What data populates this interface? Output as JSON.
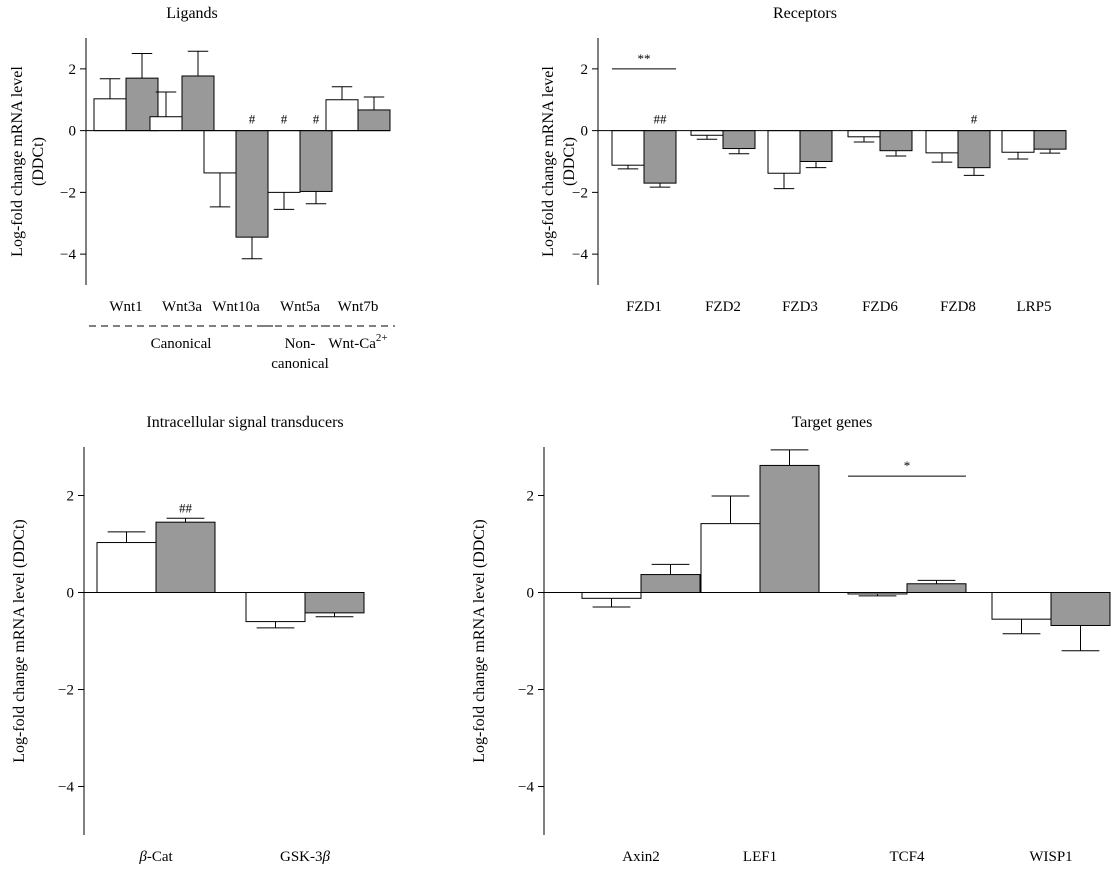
{
  "colors": {
    "control": "#ffffff",
    "treated": "#999999",
    "stroke": "#000000"
  },
  "chart_data": [
    {
      "type": "bar",
      "title": "Ligands",
      "ylabel_lines": [
        "Log-fold change mRNA level",
        "(DDCt)"
      ],
      "ylim": [
        -5,
        3
      ],
      "yticks": [
        2,
        0,
        -2,
        -4
      ],
      "ytick_labels": [
        "2",
        "0",
        "−2",
        "−4"
      ],
      "categories": [
        "Wnt1",
        "Wnt3a",
        "Wnt10a",
        "Wnt5a",
        "Wnt7b"
      ],
      "series": [
        {
          "values": [
            1.03,
            0.45,
            -1.37,
            -2.0,
            1.0
          ],
          "errors": [
            0.65,
            0.8,
            1.1,
            0.55,
            0.42
          ]
        },
        {
          "values": [
            1.7,
            1.77,
            -3.45,
            -1.97,
            0.67
          ],
          "errors": [
            0.8,
            0.8,
            0.7,
            0.4,
            0.42
          ]
        }
      ],
      "annotations": [
        {
          "category": 2,
          "series": 1,
          "text": "#"
        },
        {
          "category": 3,
          "series": 0,
          "text": "#"
        },
        {
          "category": 3,
          "series": 1,
          "text": "#"
        }
      ],
      "significance": [],
      "groups": [
        {
          "lines": [
            "Canonical"
          ],
          "from": 0,
          "to": 2
        },
        {
          "lines": [
            "Non-",
            "canonical"
          ],
          "from": 3,
          "to": 3
        },
        {
          "lines": [
            "Wnt-Ca"
          ],
          "sup": "2+",
          "from": 4,
          "to": 4
        }
      ]
    },
    {
      "type": "bar",
      "title": "Receptors",
      "ylabel_lines": [
        "Log-fold change mRNA level",
        "(DDCt)"
      ],
      "ylim": [
        -5,
        3
      ],
      "yticks": [
        2,
        0,
        -2,
        -4
      ],
      "ytick_labels": [
        "2",
        "0",
        "−2",
        "−4"
      ],
      "categories": [
        "FZD1",
        "FZD2",
        "FZD3",
        "FZD6",
        "FZD8",
        "LRP5"
      ],
      "series": [
        {
          "values": [
            -1.12,
            -0.15,
            -1.38,
            -0.2,
            -0.72,
            -0.7
          ],
          "errors": [
            0.12,
            0.13,
            0.5,
            0.17,
            0.3,
            0.22
          ]
        },
        {
          "values": [
            -1.7,
            -0.58,
            -1.0,
            -0.65,
            -1.2,
            -0.6
          ],
          "errors": [
            0.13,
            0.17,
            0.2,
            0.17,
            0.25,
            0.13
          ]
        }
      ],
      "annotations": [
        {
          "category": 0,
          "series": 1,
          "text": "##"
        },
        {
          "category": 4,
          "series": 1,
          "text": "#"
        }
      ],
      "significance": [
        {
          "category": 0,
          "text": "**",
          "y": 2.0
        }
      ],
      "groups": []
    },
    {
      "type": "bar",
      "title": "Intracellular signal transducers",
      "ylabel_lines": [
        "Log-fold change mRNA level (DDCt)"
      ],
      "ylim": [
        -5,
        3
      ],
      "yticks": [
        2,
        0,
        -2,
        -4
      ],
      "ytick_labels": [
        "2",
        "0",
        "−2",
        "−4"
      ],
      "categories": [
        "β-Cat",
        "GSK-3β"
      ],
      "series": [
        {
          "values": [
            1.03,
            -0.6
          ],
          "errors": [
            0.22,
            0.13
          ]
        },
        {
          "values": [
            1.45,
            -0.42
          ],
          "errors": [
            0.08,
            0.08
          ]
        }
      ],
      "annotations": [
        {
          "category": 0,
          "series": 1,
          "text": "##"
        }
      ],
      "significance": [],
      "groups": []
    },
    {
      "type": "bar",
      "title": "Target genes",
      "ylabel_lines": [
        "Log-fold change mRNA level (DDCt)"
      ],
      "ylim": [
        -5,
        3
      ],
      "yticks": [
        2,
        0,
        -2,
        -4
      ],
      "ytick_labels": [
        "2",
        "0",
        "−2",
        "−4"
      ],
      "categories": [
        "Axin2",
        "LEF1",
        "TCF4",
        "WISP1"
      ],
      "series": [
        {
          "values": [
            -0.12,
            1.42,
            -0.03,
            -0.55
          ],
          "errors": [
            0.18,
            0.57,
            0.04,
            0.3
          ]
        },
        {
          "values": [
            0.37,
            2.62,
            0.18,
            -0.68
          ],
          "errors": [
            0.21,
            0.32,
            0.07,
            0.52
          ]
        }
      ],
      "annotations": [],
      "significance": [
        {
          "category": 2,
          "text": "*",
          "y": 2.4
        }
      ],
      "groups": []
    }
  ]
}
